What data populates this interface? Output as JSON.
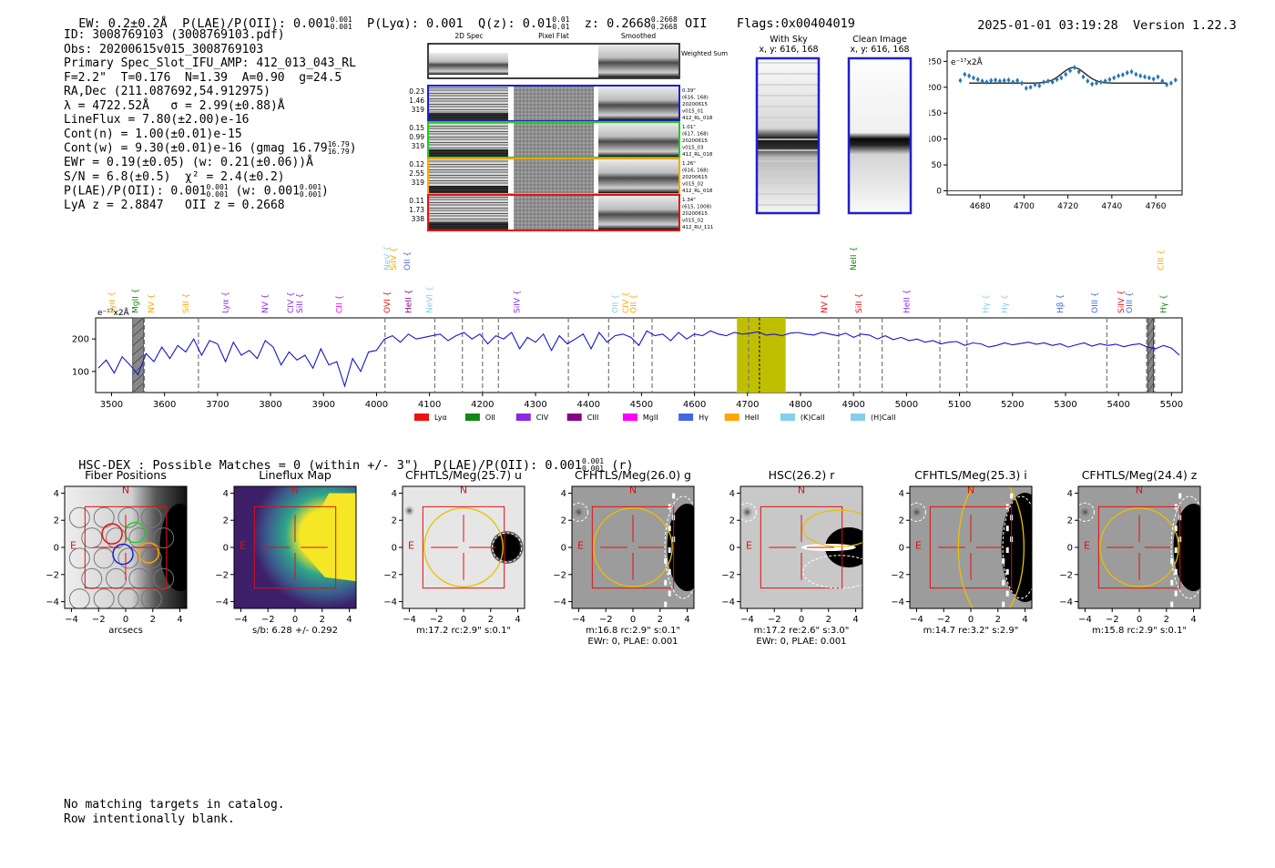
{
  "header": {
    "ew": "EW: 0.2±0.2Å",
    "plae_label": "P(LAE)/P(OII): 0.001",
    "plae_sup": "0.001",
    "plae_sub": "0.001",
    "plya": "P(Lyα): 0.001",
    "qz_label": "Q(z): 0.01",
    "qz_sup": "0.01",
    "qz_sub": "0.01",
    "z_label": "z: 0.2668",
    "z_sup": "0.2668",
    "z_sub": "0.2668",
    "z_line": "OII",
    "flags": "Flags:0x00404019",
    "timestamp": "2025-01-01 03:19:28",
    "version": "Version 1.22.3"
  },
  "info": {
    "id": "ID: 3008769103 (3008769103.pdf)",
    "obs": "Obs: 20200615v015_3008769103",
    "slot": "Primary Spec_Slot_IFU_AMP: 412_013_043_RL",
    "fwhm": "F=2.2\"  T=0.176  N=1.39  A=0.90  g=24.5",
    "radec": "RA,Dec (211.087692,54.912975)",
    "lambda": "λ = 4722.52Å   σ = 2.99(±0.88)Å",
    "lineflux": "LineFlux = 7.80(±2.00)e-16",
    "contn": "Cont(n) = 1.00(±0.01)e-15",
    "contw": "Cont(w) = 9.30(±0.01)e-16 (gmag 16.79",
    "contw_sup": "16.79",
    "contw_sub": "16.79",
    "contw_end": ")",
    "ewr": "EWr = 0.19(±0.05) (w: 0.21(±0.06))Å",
    "sn": "S/N = 6.8(±0.5)  χ² = 2.4(±0.2)",
    "plae": "P(LAE)/P(OII): 0.001",
    "plae_sup": "0.001",
    "plae_sub": "0.001",
    "plae_w": "(w: 0.001",
    "plae_w_sup": "0.001",
    "plae_w_sub": "0.001",
    "plae_w_end": ")",
    "lya_z": "LyA z = 2.8847   OII z = 0.2668"
  },
  "spec2d": {
    "col_titles": [
      "2D Spec",
      "Pixel Flat",
      "Smoothed"
    ],
    "weighted_sum": "Weighted Sum",
    "rows": [
      {
        "left": [
          "0.23",
          "1.46",
          "319"
        ],
        "right": [
          "0.39\"",
          "(616, 168)",
          "20200615",
          "v015_01",
          "412_RL_018"
        ],
        "color": "#1f1fcf"
      },
      {
        "left": [
          "0.15",
          "0.99",
          "319"
        ],
        "right": [
          "1.01\"",
          "(617, 168)",
          "20200615",
          "v015_03",
          "412_RL_018"
        ],
        "color": "#22cc22"
      },
      {
        "left": [
          "0.12",
          "2.55",
          "319"
        ],
        "right": [
          "1.26\"",
          "(616, 168)",
          "20200615",
          "v015_02",
          "412_RL_018"
        ],
        "color": "#ffa500"
      },
      {
        "left": [
          "0.11",
          "1.73",
          "338"
        ],
        "right": [
          "1.34\"",
          "(615, 1008)",
          "20200615",
          "v015_02",
          "412_RU_111"
        ],
        "color": "#e81010"
      }
    ]
  },
  "skyframes": {
    "with_sky_title": "With Sky",
    "with_sky_coords": "x, y: 616, 168",
    "clean_title": "Clean Image",
    "clean_coords": "x, y: 616, 168"
  },
  "zoom_chart": {
    "unit_label": "e⁻¹⁷x2Å",
    "yticks": [
      "0",
      "50",
      "100",
      "150",
      "200",
      "250"
    ],
    "xticks": [
      "4680",
      "4700",
      "4720",
      "4740",
      "4760"
    ]
  },
  "full_spec": {
    "unit_label": "e⁻¹⁷x2Å",
    "yticks": [
      "100",
      "200"
    ],
    "xticks": [
      "3500",
      "3600",
      "3700",
      "3800",
      "3900",
      "4000",
      "4100",
      "4200",
      "4300",
      "4400",
      "4500",
      "4600",
      "4700",
      "4800",
      "4900",
      "5000",
      "5100",
      "5200",
      "5300",
      "5400",
      "5500"
    ],
    "legend": [
      {
        "label": "Lyα",
        "color": "#ee1111"
      },
      {
        "label": "OII",
        "color": "#118811"
      },
      {
        "label": "CIV",
        "color": "#8a2be2"
      },
      {
        "label": "CIII",
        "color": "#880088"
      },
      {
        "label": "MgII",
        "color": "#ff00ff"
      },
      {
        "label": "Hγ",
        "color": "#4169e1"
      },
      {
        "label": "HeII",
        "color": "#ffa500"
      },
      {
        "label": "(K)CaII",
        "color": "#87ceeb"
      },
      {
        "label": "(H)CaII",
        "color": "#87ceeb"
      }
    ],
    "line_labels": [
      {
        "text": "Lyα",
        "x": 3500,
        "row": 0,
        "color": "#ffa500"
      },
      {
        "text": "MgII",
        "x": 3545,
        "row": 0,
        "color": "#118811"
      },
      {
        "text": "NV",
        "x": 3575,
        "row": 0,
        "color": "#ffa500"
      },
      {
        "text": "SiII",
        "x": 3640,
        "row": 0,
        "color": "#ffa500"
      },
      {
        "text": "Lyα",
        "x": 3715,
        "row": 0,
        "color": "#8a2be2"
      },
      {
        "text": "NV",
        "x": 3790,
        "row": 0,
        "color": "#8a2be2"
      },
      {
        "text": "CIV",
        "x": 3838,
        "row": 0,
        "color": "#8a2be2"
      },
      {
        "text": "SiII",
        "x": 3855,
        "row": 0,
        "color": "#8a2be2"
      },
      {
        "text": "CII",
        "x": 3930,
        "row": 0,
        "color": "#ff00ff"
      },
      {
        "text": "OVI",
        "x": 4020,
        "row": 0,
        "color": "#ee1111"
      },
      {
        "text": "HeII",
        "x": 4060,
        "row": 0,
        "color": "#880088"
      },
      {
        "text": "NeVI",
        "x": 4100,
        "row": 0,
        "color": "#87ceeb"
      },
      {
        "text": "NeV",
        "x": 4020,
        "row": 1,
        "color": "#87ceeb"
      },
      {
        "text": "SiIV",
        "x": 4032,
        "row": 1,
        "color": "#ffa500"
      },
      {
        "text": "OII",
        "x": 4058,
        "row": 1,
        "color": "#4169e1"
      },
      {
        "text": "SiIV",
        "x": 4265,
        "row": 0,
        "color": "#8a2be2"
      },
      {
        "text": "OII",
        "x": 4450,
        "row": 0,
        "color": "#87ceeb"
      },
      {
        "text": "CIV",
        "x": 4470,
        "row": 0,
        "color": "#ffa500"
      },
      {
        "text": "OII",
        "x": 4485,
        "row": 0,
        "color": "#ffa500"
      },
      {
        "text": "NV",
        "x": 4845,
        "row": 0,
        "color": "#ee1111"
      },
      {
        "text": "NeII",
        "x": 4900,
        "row": 1,
        "color": "#118811"
      },
      {
        "text": "SiII",
        "x": 4910,
        "row": 0,
        "color": "#ee1111"
      },
      {
        "text": "HeII",
        "x": 5000,
        "row": 0,
        "color": "#8a2be2"
      },
      {
        "text": "Hγ",
        "x": 5150,
        "row": 0,
        "color": "#87ceeb"
      },
      {
        "text": "Hγ",
        "x": 5185,
        "row": 0,
        "color": "#87ceeb"
      },
      {
        "text": "Hβ",
        "x": 5290,
        "row": 0,
        "color": "#4169e1"
      },
      {
        "text": "OIII",
        "x": 5355,
        "row": 0,
        "color": "#4169e1"
      },
      {
        "text": "SiIV",
        "x": 5405,
        "row": 0,
        "color": "#ee1111"
      },
      {
        "text": "OIII",
        "x": 5420,
        "row": 0,
        "color": "#4169e1"
      },
      {
        "text": "CIII",
        "x": 5480,
        "row": 1,
        "color": "#ffa500"
      },
      {
        "text": "Hγ",
        "x": 5485,
        "row": 0,
        "color": "#118811"
      }
    ]
  },
  "chart_data": [
    {
      "type": "scatter",
      "x": [
        4671,
        4673,
        4675,
        4677,
        4679,
        4681,
        4683,
        4685,
        4687,
        4689,
        4691,
        4693,
        4695,
        4697,
        4699,
        4701,
        4703,
        4705,
        4707,
        4709,
        4711,
        4713,
        4715,
        4717,
        4719,
        4721,
        4723,
        4725,
        4727,
        4729,
        4731,
        4733,
        4735,
        4737,
        4739,
        4741,
        4743,
        4745,
        4747,
        4749,
        4751,
        4753,
        4755,
        4757,
        4759,
        4761,
        4763,
        4765,
        4767,
        4769
      ],
      "y": [
        213,
        225,
        222,
        218,
        215,
        212,
        210,
        213,
        214,
        212,
        213,
        214,
        210,
        213,
        208,
        198,
        200,
        205,
        203,
        210,
        212,
        210,
        215,
        218,
        225,
        232,
        238,
        230,
        220,
        212,
        206,
        208,
        210,
        212,
        215,
        218,
        222,
        224,
        228,
        230,
        225,
        222,
        220,
        218,
        216,
        220,
        212,
        205,
        208,
        214
      ],
      "fit": {
        "continuum": 208,
        "peak": 30,
        "center": 4722.52,
        "sigma": 2.99
      },
      "xlim": [
        4665,
        4772
      ],
      "ylim": [
        -8,
        270
      ]
    },
    {
      "type": "line",
      "xlim": [
        3470,
        5520
      ],
      "ylim": [
        35,
        265
      ],
      "highlight_band": [
        4680,
        4772
      ],
      "center_line": 4722.52,
      "masked_regions": [
        [
          3540,
          3560
        ],
        [
          5455,
          5466
        ]
      ],
      "dashed_lines": [
        3562,
        3664,
        4016,
        4110,
        4162,
        4200,
        4230,
        4362,
        4438,
        4485,
        4520,
        4600,
        4702,
        4872,
        4912,
        4954,
        5063,
        5114,
        5378,
        5453,
        5468
      ],
      "x": [
        3475,
        3490,
        3505,
        3520,
        3535,
        3550,
        3565,
        3580,
        3595,
        3610,
        3625,
        3640,
        3655,
        3670,
        3685,
        3700,
        3715,
        3730,
        3745,
        3760,
        3775,
        3790,
        3805,
        3820,
        3835,
        3850,
        3865,
        3880,
        3895,
        3910,
        3925,
        3940,
        3955,
        3970,
        3985,
        4000,
        4015,
        4030,
        4045,
        4060,
        4075,
        4090,
        4105,
        4120,
        4135,
        4150,
        4165,
        4180,
        4195,
        4210,
        4225,
        4240,
        4255,
        4270,
        4285,
        4300,
        4315,
        4330,
        4345,
        4360,
        4375,
        4390,
        4405,
        4420,
        4435,
        4450,
        4465,
        4480,
        4495,
        4510,
        4525,
        4540,
        4555,
        4570,
        4585,
        4600,
        4615,
        4630,
        4645,
        4660,
        4675,
        4690,
        4705,
        4720,
        4735,
        4750,
        4765,
        4780,
        4795,
        4810,
        4825,
        4840,
        4855,
        4870,
        4885,
        4900,
        4915,
        4930,
        4945,
        4960,
        4975,
        4990,
        5005,
        5020,
        5035,
        5050,
        5065,
        5080,
        5095,
        5110,
        5125,
        5140,
        5155,
        5170,
        5185,
        5200,
        5215,
        5230,
        5245,
        5260,
        5275,
        5290,
        5305,
        5320,
        5335,
        5350,
        5365,
        5380,
        5395,
        5410,
        5425,
        5440,
        5455,
        5470,
        5485,
        5500,
        5515
      ],
      "y": [
        110,
        135,
        95,
        145,
        120,
        90,
        155,
        130,
        175,
        140,
        180,
        160,
        200,
        150,
        195,
        185,
        130,
        190,
        150,
        165,
        140,
        195,
        175,
        120,
        160,
        135,
        150,
        110,
        170,
        120,
        130,
        55,
        140,
        100,
        160,
        165,
        200,
        210,
        190,
        215,
        200,
        205,
        210,
        215,
        195,
        210,
        220,
        200,
        215,
        185,
        210,
        200,
        220,
        170,
        205,
        190,
        215,
        165,
        210,
        185,
        200,
        215,
        170,
        220,
        190,
        210,
        215,
        205,
        180,
        225,
        210,
        215,
        195,
        220,
        200,
        215,
        210,
        225,
        215,
        210,
        220,
        215,
        218,
        222,
        212,
        215,
        210,
        218,
        220,
        215,
        212,
        220,
        215,
        210,
        218,
        205,
        215,
        212,
        200,
        210,
        198,
        205,
        195,
        200,
        190,
        195,
        185,
        190,
        192,
        180,
        188,
        185,
        175,
        180,
        188,
        182,
        186,
        190,
        184,
        188,
        180,
        185,
        175,
        182,
        188,
        178,
        185,
        180,
        184,
        176,
        182,
        185,
        175,
        170,
        180,
        172,
        150
      ]
    }
  ],
  "catalog": {
    "hscdex": "HSC-DEX : Possible Matches = 0 (within +/- 3\")",
    "plae": "P(LAE)/P(OII): 0.001",
    "plae_sup": "0.001",
    "plae_sub": "0.001",
    "plae_band": "(r)"
  },
  "cutouts": [
    {
      "title": "Fiber Positions",
      "caption1": "arcsecs",
      "caption2": "",
      "style": "fiber"
    },
    {
      "title": "Lineflux Map",
      "caption1": "s/b: 6.28 +/- 0.292",
      "caption2": "",
      "style": "flux"
    },
    {
      "title": "CFHTLS/Meg(25.7) u",
      "caption1": "m:17.2 rc:2.9\"  s:0.1\"",
      "caption2": "",
      "style": "u"
    },
    {
      "title": "CFHTLS/Meg(26.0) g",
      "caption1": "m:16.8 rc:2.9\"  s:0.1\"",
      "caption2": "EWr: 0, PLAE: 0.001",
      "style": "g"
    },
    {
      "title": "HSC(26.2) r",
      "caption1": "m:17.2  re:2.6\"  s:3.0\"",
      "caption2": "EWr: 0, PLAE: 0.001",
      "style": "r"
    },
    {
      "title": "CFHTLS/Meg(25.3) i",
      "caption1": "m:14.7  re:3.2\"  s:2.9\"",
      "caption2": "",
      "style": "i"
    },
    {
      "title": "CFHTLS/Meg(24.4) z",
      "caption1": "m:15.8 rc:2.9\"  s:0.1\"",
      "caption2": "",
      "style": "z"
    }
  ],
  "cutout_axis": {
    "ticks": [
      "−4",
      "−2",
      "0",
      "2",
      "4"
    ],
    "north": "N",
    "east": "E"
  },
  "footer": {
    "line1": "No matching targets in catalog.",
    "line2": "Row intentionally blank."
  }
}
